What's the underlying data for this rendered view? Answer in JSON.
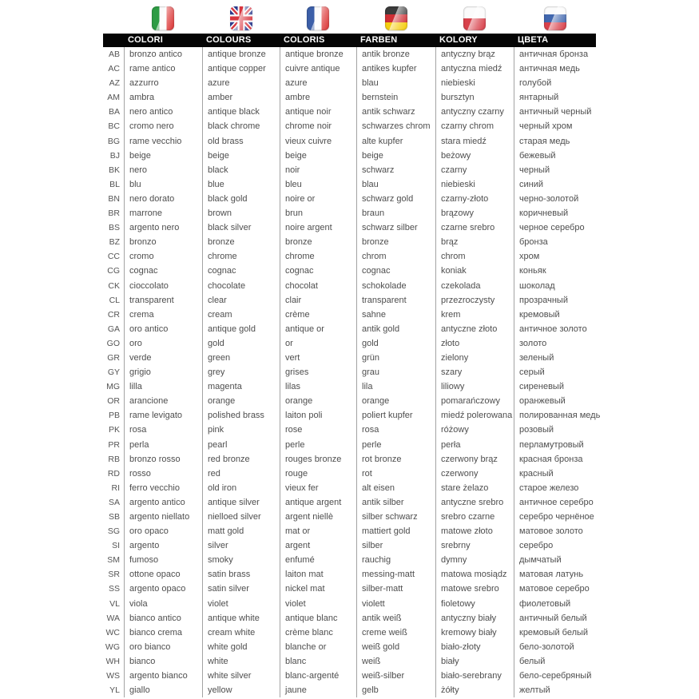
{
  "page": {
    "background": "#ffffff",
    "bar_color": "#050505",
    "text_color": "#4e4e4e",
    "divider_color": "#a3a3a3"
  },
  "header": {
    "columns": [
      {
        "label": "COLORI",
        "language": "Italian",
        "flag_icon": "flag-italy-icon"
      },
      {
        "label": "COLOURS",
        "language": "English",
        "flag_icon": "flag-uk-icon"
      },
      {
        "label": "COLORIS",
        "language": "French",
        "flag_icon": "flag-france-icon"
      },
      {
        "label": "FARBEN",
        "language": "German",
        "flag_icon": "flag-germany-icon"
      },
      {
        "label": "KOLORY",
        "language": "Polish",
        "flag_icon": "flag-poland-icon"
      },
      {
        "label": "ЦВЕТА",
        "language": "Russian",
        "flag_icon": "flag-russia-icon"
      }
    ]
  },
  "flag_colors": {
    "italy": [
      "#2e9c45",
      "#fbfbfb",
      "#dd3c3c"
    ],
    "uk": [
      "#2c3b8c",
      "#fbfbfb",
      "#d8353f"
    ],
    "france": [
      "#3c5fa8",
      "#fbfbfb",
      "#dd3c3c"
    ],
    "germany": [
      "#3b3b3b",
      "#cf2e34",
      "#f5ce12"
    ],
    "poland": [
      "#fbfbfb",
      "#d8414b"
    ],
    "russia": [
      "#fbfbfb",
      "#4167ae",
      "#d8414b"
    ]
  },
  "table": {
    "col_keys": [
      "code",
      "it",
      "en",
      "fr",
      "de",
      "pl",
      "ru"
    ],
    "rows": [
      [
        "AB",
        "bronzo antico",
        "antique bronze",
        "antique bronze",
        "antik bronze",
        "antyczny brąz",
        "античная бронза"
      ],
      [
        "AC",
        "rame antico",
        "antique copper",
        "cuivre antique",
        "antikes kupfer",
        "antyczna miedź",
        "античная медь"
      ],
      [
        "AZ",
        "azzurro",
        "azure",
        "azure",
        "blau",
        "niebieski",
        "голубой"
      ],
      [
        "AM",
        "ambra",
        "amber",
        "ambre",
        "bernstein",
        "bursztyn",
        "янтарный"
      ],
      [
        "BA",
        "nero antico",
        "antique black",
        "antique noir",
        "antik schwarz",
        "antyczny czarny",
        "античный черный"
      ],
      [
        "BC",
        "cromo nero",
        "black chrome",
        "chrome noir",
        "schwarzes chrom",
        "czarny chrom",
        "черный хром"
      ],
      [
        "BG",
        "rame vecchio",
        "old brass",
        "vieux cuivre",
        "alte kupfer",
        "stara miedź",
        "старая медь"
      ],
      [
        "BJ",
        "beige",
        "beige",
        "beige",
        "beige",
        "beżowy",
        "бежевый"
      ],
      [
        "BK",
        "nero",
        "black",
        "noir",
        "schwarz",
        "czarny",
        "черный"
      ],
      [
        "BL",
        "blu",
        "blue",
        "bleu",
        "blau",
        "niebieski",
        "синий"
      ],
      [
        "BN",
        "nero dorato",
        "black gold",
        "noire or",
        "schwarz gold",
        "czarny-złoto",
        "черно-золотой"
      ],
      [
        "BR",
        "marrone",
        "brown",
        "brun",
        "braun",
        "brązowy",
        "коричневый"
      ],
      [
        "BS",
        "argento nero",
        "black silver",
        "noire argent",
        "schwarz silber",
        "czarne srebro",
        "черное серебро"
      ],
      [
        "BZ",
        "bronzo",
        "bronze",
        "bronze",
        "bronze",
        "brąz",
        "бронза"
      ],
      [
        "CC",
        "cromo",
        "chrome",
        "chrome",
        "chrom",
        "chrom",
        "хром"
      ],
      [
        "CG",
        "cognac",
        "cognac",
        "cognac",
        "cognac",
        "koniak",
        "коньяк"
      ],
      [
        "CK",
        "cioccolato",
        "chocolate",
        "chocolat",
        "schokolade",
        "czekolada",
        "шоколад"
      ],
      [
        "CL",
        "transparent",
        "clear",
        "clair",
        "transparent",
        "przezroczysty",
        "прозрачный"
      ],
      [
        "CR",
        "crema",
        "cream",
        "crème",
        "sahne",
        "krem",
        "кремовый"
      ],
      [
        "GA",
        "oro antico",
        "antique gold",
        "antique or",
        "antik gold",
        "antyczne złoto",
        "античное золото"
      ],
      [
        "GO",
        "oro",
        "gold",
        "or",
        "gold",
        "złoto",
        "золото"
      ],
      [
        "GR",
        "verde",
        "green",
        "vert",
        "grün",
        "zielony",
        "зеленый"
      ],
      [
        "GY",
        "grigio",
        "grey",
        "grises",
        "grau",
        "szary",
        "серый"
      ],
      [
        "MG",
        "lilla",
        "magenta",
        "lilas",
        "lila",
        "liliowy",
        "сиреневый"
      ],
      [
        "OR",
        "arancione",
        "orange",
        "orange",
        "orange",
        "pomarańczowy",
        "оранжевый"
      ],
      [
        "PB",
        "rame levigato",
        "polished brass",
        "laiton poli",
        "poliert kupfer",
        "miedź polerowana",
        "полированная медь"
      ],
      [
        "PK",
        "rosa",
        "pink",
        "rose",
        "rosa",
        "różowy",
        "розовый"
      ],
      [
        "PR",
        "perla",
        "pearl",
        "perle",
        "perle",
        "perła",
        "перламутровый"
      ],
      [
        "RB",
        "bronzo rosso",
        "red bronze",
        "rouges bronze",
        "rot bronze",
        "czerwony brąz",
        "красная бронза"
      ],
      [
        "RD",
        "rosso",
        "red",
        "rouge",
        "rot",
        "czerwony",
        "красный"
      ],
      [
        "RI",
        "ferro vecchio",
        "old iron",
        "vieux fer",
        "alt eisen",
        "stare żelazo",
        "старое железо"
      ],
      [
        "SA",
        "argento antico",
        "antique silver",
        "antique argent",
        "antik silber",
        "antyczne srebro",
        "античное серебро"
      ],
      [
        "SB",
        "argento niellato",
        "nielloed silver",
        "argent niellè",
        "silber schwarz",
        "srebro czarne",
        "серебро чернёное"
      ],
      [
        "SG",
        "oro opaco",
        "matt gold",
        "mat or",
        "mattiert gold",
        "matowe złoto",
        "матовое золото"
      ],
      [
        "SI",
        "argento",
        "silver",
        "argent",
        "silber",
        "srebrny",
        "серебро"
      ],
      [
        "SM",
        "fumoso",
        "smoky",
        "enfumé",
        "rauchig",
        "dymny",
        "дымчатый"
      ],
      [
        "SR",
        "ottone opaco",
        "satin brass",
        "laiton mat",
        "messing-matt",
        "matowa mosiądz",
        "матовая латунь"
      ],
      [
        "SS",
        "argento opaco",
        "satin silver",
        "nickel mat",
        "silber-matt",
        "matowe srebro",
        "матовое серебро"
      ],
      [
        "VL",
        "viola",
        "violet",
        "violet",
        "violett",
        "fioletowy",
        "фиолетовый"
      ],
      [
        "WA",
        "bianco antico",
        "antique white",
        "antique blanc",
        "antik weiß",
        "antyczny biały",
        "античный белый"
      ],
      [
        "WC",
        "bianco crema",
        "cream white",
        "crème blanc",
        "creme weiß",
        "kremowy biały",
        "кремовый белый"
      ],
      [
        "WG",
        "oro bianco",
        "white gold",
        "blanche or",
        "weiß gold",
        "biało-złoty",
        "бело-золотой"
      ],
      [
        "WH",
        "bianco",
        "white",
        "blanc",
        "weiß",
        "biały",
        "белый"
      ],
      [
        "WS",
        "argento bianco",
        "white silver",
        "blanc-argenté",
        "weiß-silber",
        "biało-serebrany",
        "бело-серебряный"
      ],
      [
        "YL",
        "giallo",
        "yellow",
        "jaune",
        "gelb",
        "żółty",
        "желтый"
      ]
    ]
  }
}
